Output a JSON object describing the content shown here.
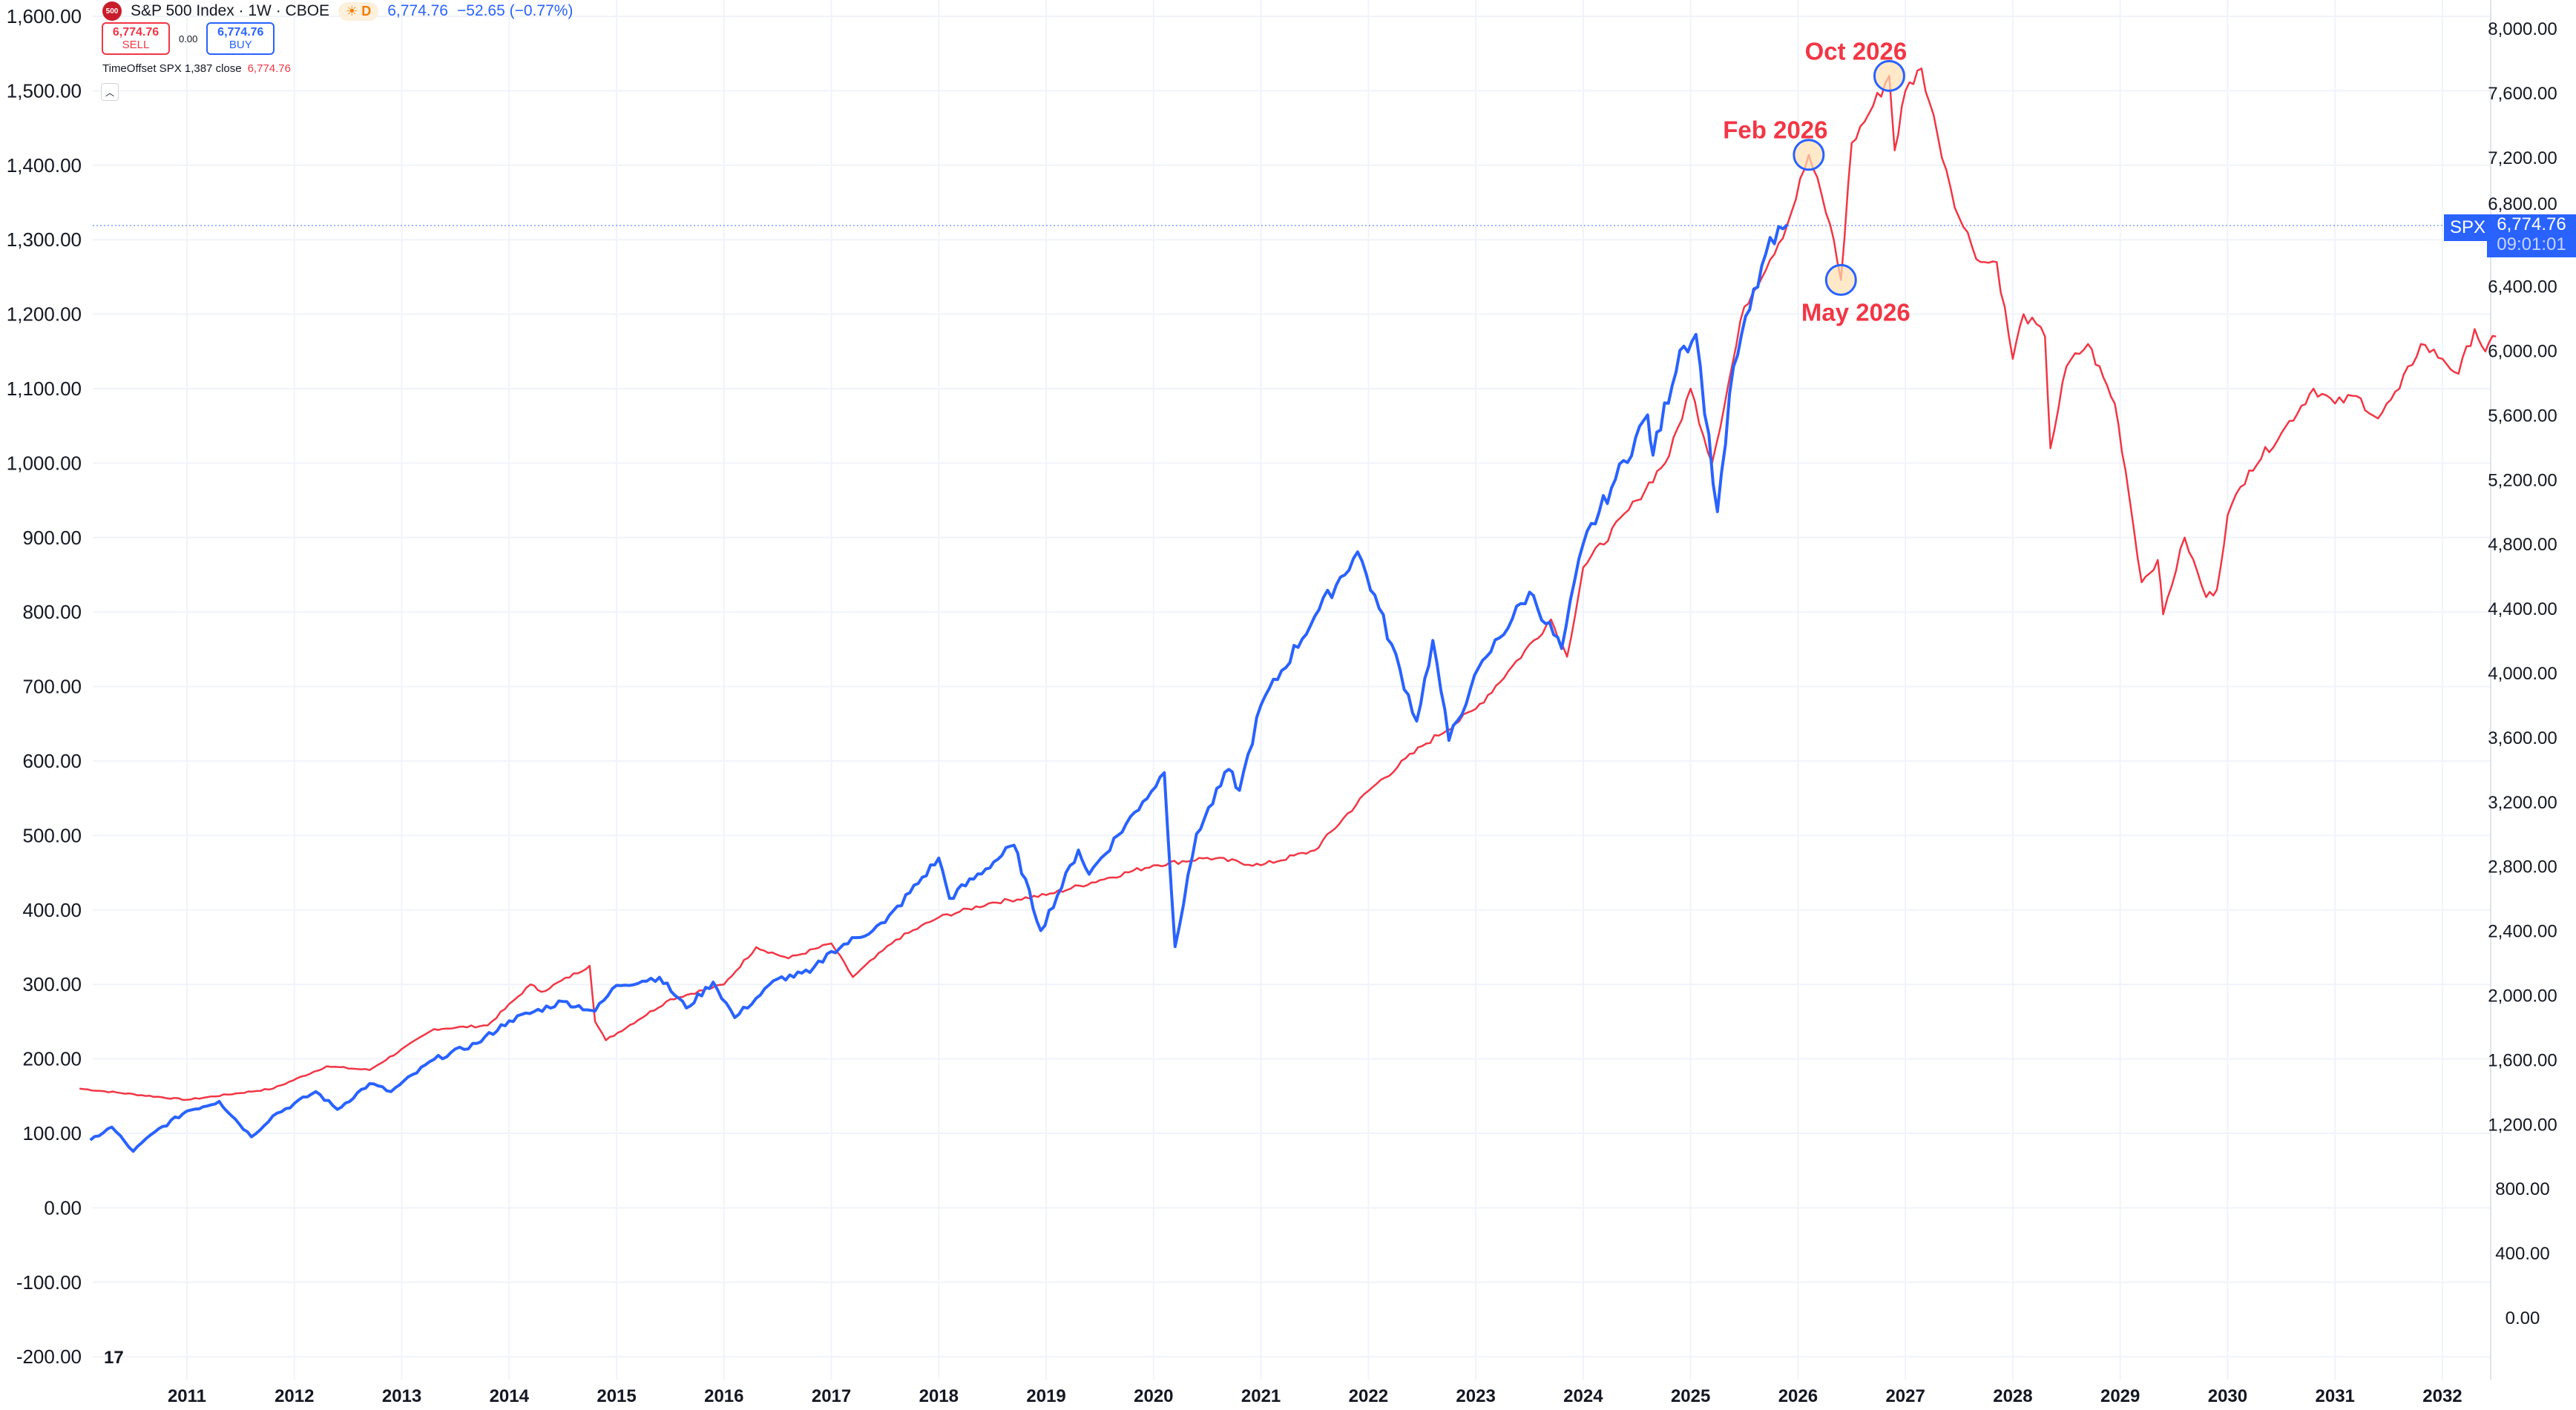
{
  "header": {
    "logo_text": "500",
    "title": "S&P 500 Index · 1W · CBOE",
    "session_badge": "D",
    "price": "6,774.76",
    "change": "−52.65 (−0.77%)"
  },
  "trade": {
    "sell_price": "6,774.76",
    "sell_label": "SELL",
    "spread": "0.00",
    "buy_price": "6,774.76",
    "buy_label": "BUY"
  },
  "indicator": {
    "label": "TimeOffset SPX 1,387 close",
    "value": "6,774.76"
  },
  "price_tag": {
    "symbol": "SPX",
    "price": "6,774.76",
    "countdown": "09:01:01"
  },
  "chart_data": {
    "type": "line",
    "title": "S&P 500 Index · 1W · CBOE",
    "colors": {
      "spx": "#2962ff",
      "offset": "#f23645",
      "annotation_fill": "#ffe0b2"
    },
    "x_ticks": [
      "2011",
      "2012",
      "2013",
      "2014",
      "2015",
      "2016",
      "2017",
      "2018",
      "2019",
      "2020",
      "2021",
      "2022",
      "2023",
      "2024",
      "2025",
      "2026",
      "2027",
      "2028",
      "2029",
      "2030",
      "2031",
      "2032"
    ],
    "left_axis": {
      "range": [
        -200,
        1600
      ],
      "ticks": [
        "1,600.00",
        "1,500.00",
        "1,400.00",
        "1,300.00",
        "1,200.00",
        "1,100.00",
        "1,000.00",
        "900.00",
        "800.00",
        "700.00",
        "600.00",
        "500.00",
        "400.00",
        "300.00",
        "200.00",
        "100.00",
        "0.00",
        "-100.00",
        "-200.00"
      ]
    },
    "right_axis": {
      "range": [
        0,
        8000
      ],
      "ticks": [
        "8,000.00",
        "7,600.00",
        "7,200.00",
        "6,800.00",
        "6,400.00",
        "6,000.00",
        "5,600.00",
        "5,200.00",
        "4,800.00",
        "4,400.00",
        "4,000.00",
        "3,600.00",
        "3,200.00",
        "2,800.00",
        "2,400.00",
        "2,000.00",
        "1,600.00",
        "1,200.00",
        "800.00",
        "400.00",
        "0.00"
      ]
    },
    "series": [
      {
        "name": "SPX",
        "axis": "right",
        "points": [
          [
            2010.1,
            1100
          ],
          [
            2010.3,
            1180
          ],
          [
            2010.5,
            1030
          ],
          [
            2010.7,
            1150
          ],
          [
            2011.0,
            1280
          ],
          [
            2011.3,
            1340
          ],
          [
            2011.6,
            1120
          ],
          [
            2011.8,
            1250
          ],
          [
            2012.2,
            1400
          ],
          [
            2012.4,
            1290
          ],
          [
            2012.7,
            1450
          ],
          [
            2012.9,
            1400
          ],
          [
            2013.3,
            1600
          ],
          [
            2013.7,
            1700
          ],
          [
            2014.0,
            1840
          ],
          [
            2014.5,
            1960
          ],
          [
            2014.8,
            1900
          ],
          [
            2015.0,
            2060
          ],
          [
            2015.4,
            2110
          ],
          [
            2015.65,
            1920
          ],
          [
            2015.9,
            2080
          ],
          [
            2016.1,
            1860
          ],
          [
            2016.5,
            2100
          ],
          [
            2016.8,
            2140
          ],
          [
            2017.0,
            2270
          ],
          [
            2017.5,
            2450
          ],
          [
            2018.0,
            2850
          ],
          [
            2018.1,
            2600
          ],
          [
            2018.7,
            2930
          ],
          [
            2018.95,
            2400
          ],
          [
            2019.3,
            2900
          ],
          [
            2019.4,
            2750
          ],
          [
            2019.9,
            3200
          ],
          [
            2020.1,
            3380
          ],
          [
            2020.2,
            2300
          ],
          [
            2020.4,
            3000
          ],
          [
            2020.7,
            3400
          ],
          [
            2020.8,
            3270
          ],
          [
            2021.0,
            3800
          ],
          [
            2021.5,
            4350
          ],
          [
            2021.9,
            4750
          ],
          [
            2022.1,
            4400
          ],
          [
            2022.45,
            3700
          ],
          [
            2022.6,
            4200
          ],
          [
            2022.75,
            3580
          ],
          [
            2022.95,
            3900
          ],
          [
            2023.1,
            4100
          ],
          [
            2023.5,
            4500
          ],
          [
            2023.8,
            4150
          ],
          [
            2024.0,
            4800
          ],
          [
            2024.3,
            5200
          ],
          [
            2024.6,
            5600
          ],
          [
            2024.65,
            5350
          ],
          [
            2024.9,
            6000
          ],
          [
            2025.05,
            6100
          ],
          [
            2025.25,
            5000
          ],
          [
            2025.4,
            5900
          ],
          [
            2025.7,
            6600
          ],
          [
            2025.9,
            6780
          ]
        ]
      },
      {
        "name": "TimeOffset SPX 1,387",
        "axis": "left",
        "points": [
          [
            2010.0,
            160
          ],
          [
            2011.0,
            145
          ],
          [
            2011.8,
            160
          ],
          [
            2012.3,
            190
          ],
          [
            2012.7,
            185
          ],
          [
            2013.3,
            240
          ],
          [
            2013.8,
            245
          ],
          [
            2014.2,
            300
          ],
          [
            2014.3,
            290
          ],
          [
            2014.75,
            325
          ],
          [
            2014.8,
            250
          ],
          [
            2014.9,
            225
          ],
          [
            2015.5,
            280
          ],
          [
            2016.0,
            300
          ],
          [
            2016.3,
            350
          ],
          [
            2016.6,
            335
          ],
          [
            2017.0,
            355
          ],
          [
            2017.2,
            310
          ],
          [
            2017.6,
            360
          ],
          [
            2018.0,
            390
          ],
          [
            2018.5,
            410
          ],
          [
            2019.0,
            420
          ],
          [
            2019.5,
            440
          ],
          [
            2020.0,
            460
          ],
          [
            2020.5,
            470
          ],
          [
            2021.0,
            460
          ],
          [
            2021.5,
            480
          ],
          [
            2022.0,
            560
          ],
          [
            2022.5,
            620
          ],
          [
            2023.0,
            670
          ],
          [
            2023.3,
            720
          ],
          [
            2023.7,
            790
          ],
          [
            2023.85,
            740
          ],
          [
            2024.0,
            860
          ],
          [
            2024.5,
            950
          ],
          [
            2024.8,
            1010
          ],
          [
            2025.0,
            1100
          ],
          [
            2025.2,
            1000
          ],
          [
            2025.5,
            1210
          ],
          [
            2025.9,
            1320
          ],
          [
            2026.1,
            1414
          ],
          [
            2026.3,
            1320
          ],
          [
            2026.4,
            1246
          ],
          [
            2026.5,
            1430
          ],
          [
            2026.7,
            1480
          ],
          [
            2026.85,
            1520
          ],
          [
            2026.9,
            1420
          ],
          [
            2027.0,
            1500
          ],
          [
            2027.15,
            1530
          ],
          [
            2027.3,
            1440
          ],
          [
            2027.5,
            1330
          ],
          [
            2027.7,
            1270
          ],
          [
            2027.85,
            1270
          ],
          [
            2028.0,
            1140
          ],
          [
            2028.1,
            1200
          ],
          [
            2028.3,
            1170
          ],
          [
            2028.35,
            1020
          ],
          [
            2028.5,
            1130
          ],
          [
            2028.7,
            1160
          ],
          [
            2028.95,
            1080
          ],
          [
            2029.05,
            990
          ],
          [
            2029.2,
            840
          ],
          [
            2029.35,
            870
          ],
          [
            2029.4,
            797
          ],
          [
            2029.6,
            900
          ],
          [
            2029.8,
            820
          ],
          [
            2029.9,
            830
          ],
          [
            2030.0,
            930
          ],
          [
            2030.2,
            990
          ],
          [
            2030.5,
            1040
          ],
          [
            2030.8,
            1100
          ],
          [
            2031.0,
            1080
          ],
          [
            2031.2,
            1090
          ],
          [
            2031.4,
            1060
          ],
          [
            2031.6,
            1100
          ],
          [
            2031.8,
            1160
          ],
          [
            2032.0,
            1140
          ],
          [
            2032.15,
            1120
          ],
          [
            2032.3,
            1180
          ],
          [
            2032.4,
            1150
          ],
          [
            2032.5,
            1170
          ]
        ]
      }
    ],
    "annotations": [
      {
        "label": "Feb 2026",
        "x": 2026.1,
        "y": 1414,
        "label_pos": "above"
      },
      {
        "label": "May 2026",
        "x": 2026.4,
        "y": 1246,
        "label_pos": "below"
      },
      {
        "label": "Oct 2026",
        "x": 2026.85,
        "y": 1520,
        "label_pos": "above"
      }
    ],
    "current_price_line": 6774.76
  }
}
